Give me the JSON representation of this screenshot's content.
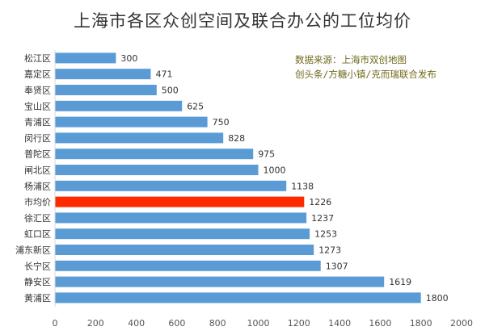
{
  "chart_data": {
    "type": "bar",
    "orientation": "horizontal",
    "title": "上海市各区众创空间及联合办公的工位均价",
    "categories": [
      "松江区",
      "嘉定区",
      "奉贤区",
      "宝山区",
      "青浦区",
      "闵行区",
      "普陀区",
      "闸北区",
      "杨浦区",
      "市均价",
      "徐汇区",
      "虹口区",
      "浦东新区",
      "长宁区",
      "静安区",
      "黄浦区"
    ],
    "values": [
      300,
      471,
      500,
      625,
      750,
      828,
      975,
      1000,
      1138,
      1226,
      1237,
      1253,
      1273,
      1307,
      1619,
      1800
    ],
    "highlight_category": "市均价",
    "xlim": [
      0,
      2000
    ],
    "xticks": [
      0,
      200,
      400,
      600,
      800,
      1000,
      1200,
      1400,
      1600,
      1800,
      2000
    ],
    "grid": false,
    "legend": "none",
    "colors": {
      "bar": "#5b9bd5",
      "highlight": "#ff2a00"
    },
    "annotation": [
      "数据来源：上海市双创地图",
      "创头条/方糖小镇/克而瑞联合发布"
    ]
  }
}
